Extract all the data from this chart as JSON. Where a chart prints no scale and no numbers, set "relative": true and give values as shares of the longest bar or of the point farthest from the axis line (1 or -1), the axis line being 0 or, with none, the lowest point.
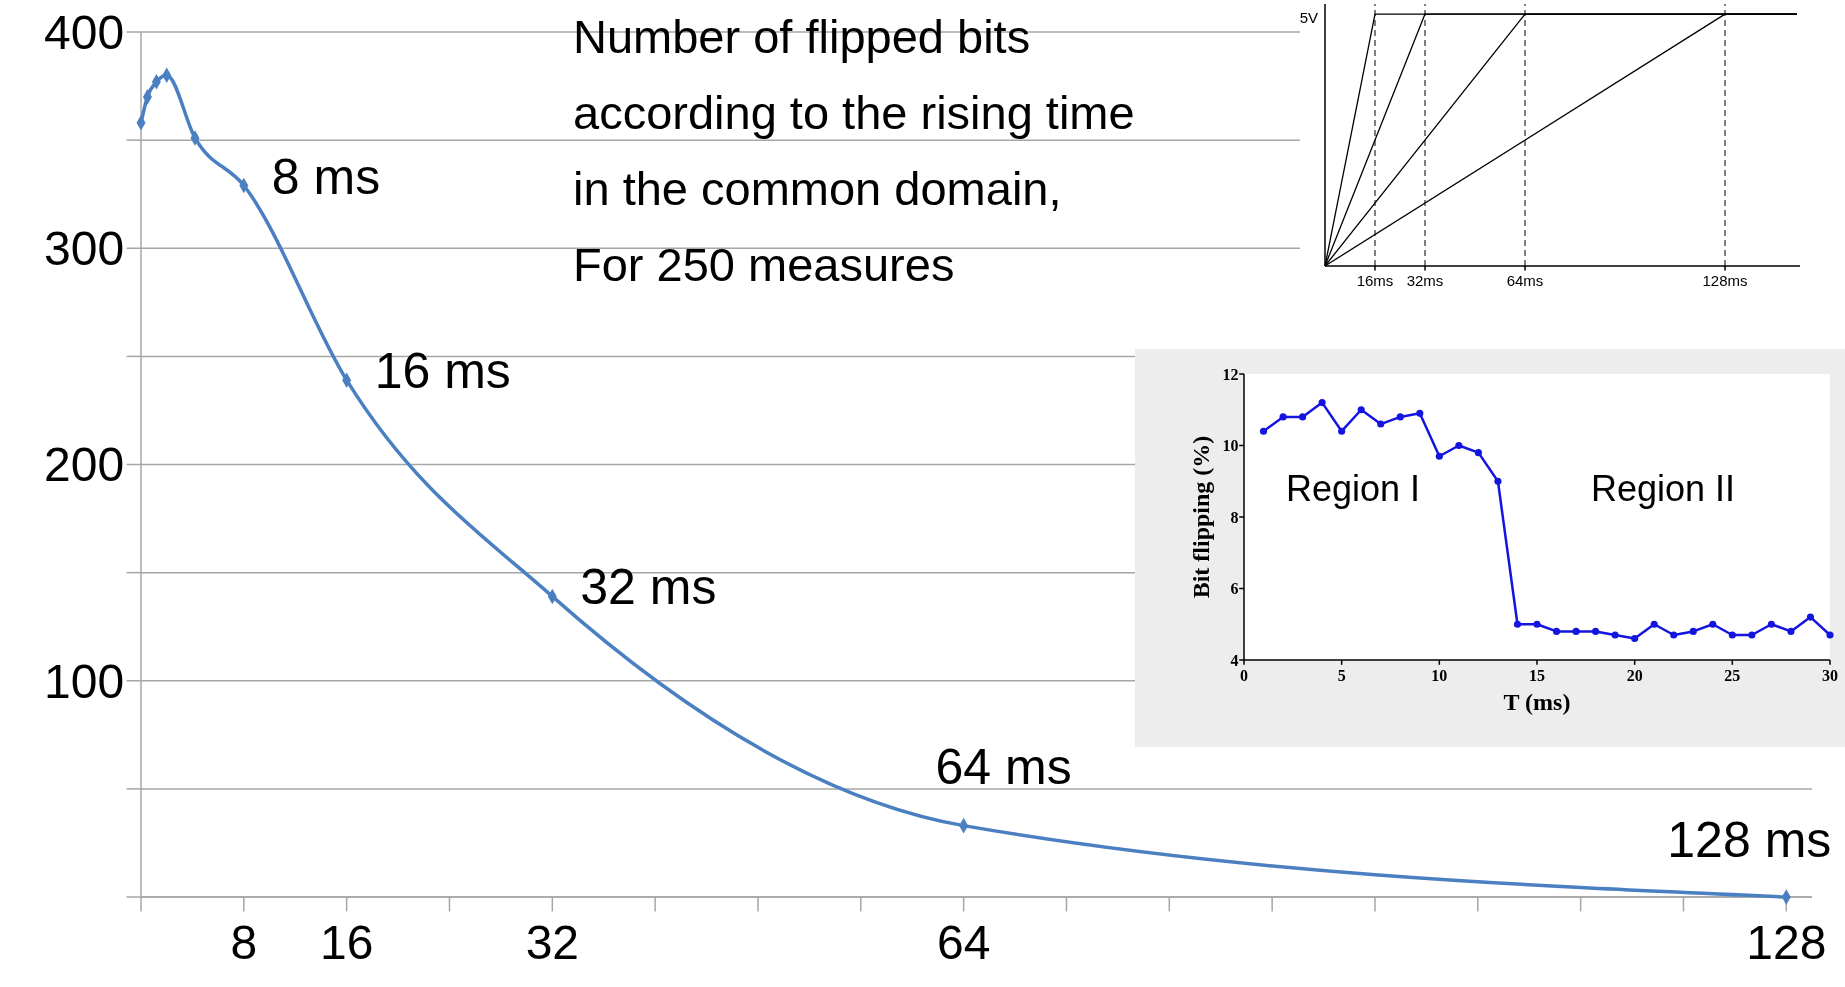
{
  "chart_data": [
    {
      "type": "line",
      "title": "Number of flipped bits\naccording to the rising time\nin the common domain,\nFor 250 measures",
      "x": [
        0,
        0.5,
        1.2,
        2,
        4.2,
        8,
        16,
        32,
        64,
        128
      ],
      "series": [
        {
          "color": "#4a7fc1",
          "values": [
            358,
            370,
            377,
            380,
            351,
            329,
            239,
            139,
            33,
            0
          ]
        }
      ],
      "xlim": [
        0,
        130
      ],
      "ylim": [
        0,
        400
      ],
      "xticks": [
        {
          "value": 0,
          "label": null
        },
        8,
        16,
        {
          "value": 24,
          "label": null
        },
        32,
        {
          "value": 40,
          "label": null
        },
        {
          "value": 48,
          "label": null
        },
        {
          "value": 56,
          "label": null
        },
        64,
        {
          "value": 72,
          "label": null
        },
        {
          "value": 80,
          "label": null
        },
        {
          "value": 88,
          "label": null
        },
        {
          "value": 96,
          "label": null
        },
        {
          "value": 104,
          "label": null
        },
        {
          "value": 112,
          "label": null
        },
        {
          "value": 120,
          "label": null
        },
        128
      ],
      "yticks": [
        {
          "value": 0,
          "label": null
        },
        {
          "value": 50,
          "label": null
        },
        100,
        {
          "value": 150,
          "label": null
        },
        200,
        {
          "value": 250,
          "label": null
        },
        300,
        {
          "value": 350,
          "label": null
        },
        400
      ],
      "grid": "y",
      "marker": "diamond",
      "annotations": [
        {
          "text": "8 ms",
          "x": 8,
          "y": 329
        },
        {
          "text": "16 ms",
          "x": 16,
          "y": 239
        },
        {
          "text": "32 ms",
          "x": 32,
          "y": 139
        },
        {
          "text": "64 ms",
          "x": 64,
          "y": 33
        },
        {
          "text": "128 ms",
          "x": 128,
          "y": 0
        }
      ]
    },
    {
      "type": "line",
      "relative": true,
      "series": [
        {
          "color": "#000000",
          "x": [
            0,
            16,
            151
          ],
          "values": [
            0,
            1,
            1
          ]
        },
        {
          "color": "#000000",
          "x": [
            0,
            32,
            151
          ],
          "values": [
            0,
            1,
            1
          ]
        },
        {
          "color": "#000000",
          "x": [
            0,
            64,
            151
          ],
          "values": [
            0,
            1,
            1
          ]
        },
        {
          "color": "#000000",
          "x": [
            0,
            128,
            151
          ],
          "values": [
            0,
            1,
            1
          ]
        }
      ],
      "xlim": [
        0,
        152
      ],
      "xticks": [
        {
          "value": 16,
          "label": "16ms"
        },
        {
          "value": 32,
          "label": "32ms"
        },
        {
          "value": 64,
          "label": "64ms"
        },
        {
          "value": 128,
          "label": "128ms"
        }
      ],
      "annotations": [
        "5V"
      ],
      "ref_lines": [
        {
          "axis": "x",
          "value": 16,
          "color": "#000000",
          "line_style": "dashed"
        },
        {
          "axis": "x",
          "value": 32,
          "color": "#000000",
          "line_style": "dashed"
        },
        {
          "axis": "x",
          "value": 64,
          "color": "#000000",
          "line_style": "dashed"
        },
        {
          "axis": "x",
          "value": 128,
          "color": "#000000",
          "line_style": "dashed"
        }
      ],
      "marker": "none"
    },
    {
      "type": "line",
      "xlabel": "T (ms)",
      "ylabel": "Bit flipping (%)",
      "x": [
        1,
        2,
        3,
        4,
        5,
        6,
        7,
        8,
        9,
        10,
        11,
        12,
        13,
        14,
        15,
        16,
        17,
        18,
        19,
        20,
        21,
        22,
        23,
        24,
        25,
        26,
        27,
        28,
        29,
        30
      ],
      "series": [
        {
          "color": "#1414e0",
          "values": [
            10.4,
            10.8,
            10.8,
            11.2,
            10.4,
            11.0,
            10.6,
            10.8,
            10.9,
            9.7,
            10.0,
            9.8,
            9.0,
            5.0,
            5.0,
            4.8,
            4.8,
            4.8,
            4.7,
            4.6,
            5.0,
            4.7,
            4.8,
            5.0,
            4.7,
            4.7,
            5.0,
            4.8,
            5.2,
            4.7
          ]
        }
      ],
      "xlim": [
        0,
        30
      ],
      "ylim": [
        4,
        12
      ],
      "xticks": [
        0,
        5,
        10,
        15,
        20,
        25,
        30
      ],
      "yticks": [
        4,
        6,
        8,
        10,
        12
      ],
      "marker": "circle",
      "annotations": [
        "Region I",
        "Region II"
      ]
    }
  ]
}
